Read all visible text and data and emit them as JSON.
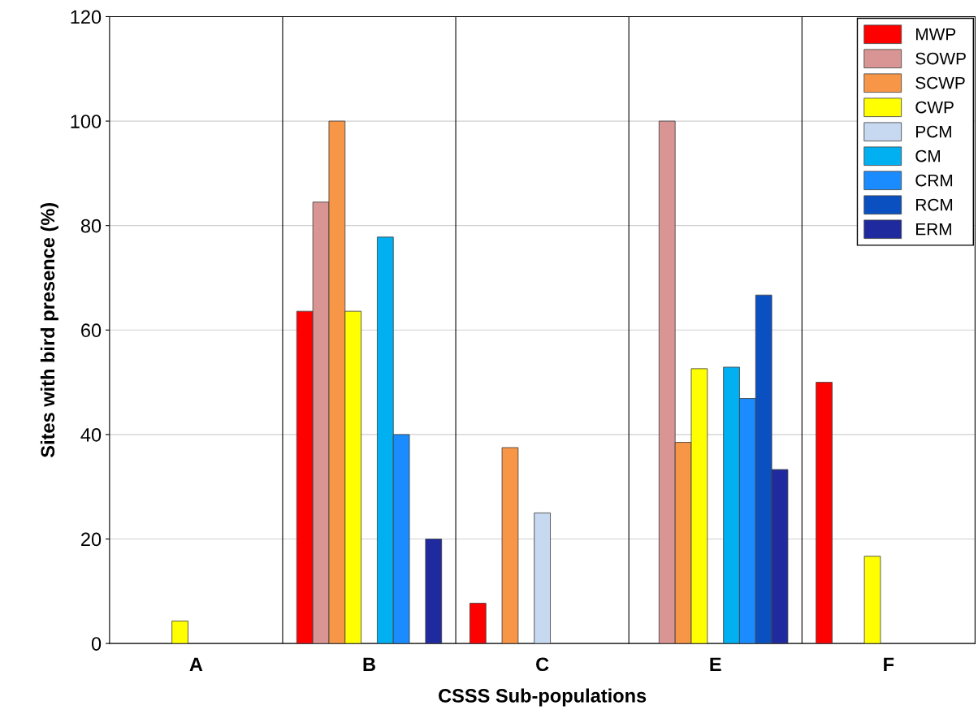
{
  "chart_data": {
    "type": "bar",
    "xlabel": "CSSS Sub-populations",
    "ylabel": "Sites with bird presence (%)",
    "categories": [
      "A",
      "B",
      "C",
      "E",
      "F"
    ],
    "series": [
      {
        "name": "MWP",
        "color": "#ff0000",
        "values": [
          null,
          63.6,
          7.7,
          null,
          50
        ]
      },
      {
        "name": "SOWP",
        "color": "#d99594",
        "values": [
          null,
          84.5,
          null,
          100,
          null
        ]
      },
      {
        "name": "SCWP",
        "color": "#f79646",
        "values": [
          null,
          100,
          37.5,
          38.5,
          null
        ]
      },
      {
        "name": "CWP",
        "color": "#ffff00",
        "values": [
          4.3,
          63.6,
          null,
          52.6,
          16.7
        ]
      },
      {
        "name": "PCM",
        "color": "#c6d9f0",
        "values": [
          null,
          null,
          25,
          null,
          null
        ]
      },
      {
        "name": "CM",
        "color": "#00b0f0",
        "values": [
          null,
          77.8,
          null,
          52.9,
          null
        ]
      },
      {
        "name": "CRM",
        "color": "#1a8cff",
        "values": [
          null,
          40,
          null,
          46.9,
          null
        ]
      },
      {
        "name": "RCM",
        "color": "#0a50c0",
        "values": [
          null,
          null,
          null,
          66.7,
          null
        ]
      },
      {
        "name": "ERM",
        "color": "#1f2a9e",
        "values": [
          null,
          20,
          null,
          33.3,
          null
        ]
      }
    ],
    "ylim": [
      0,
      120
    ],
    "yticks": [
      0,
      20,
      40,
      60,
      80,
      100,
      120
    ],
    "grid": "y",
    "legend": "top right"
  }
}
